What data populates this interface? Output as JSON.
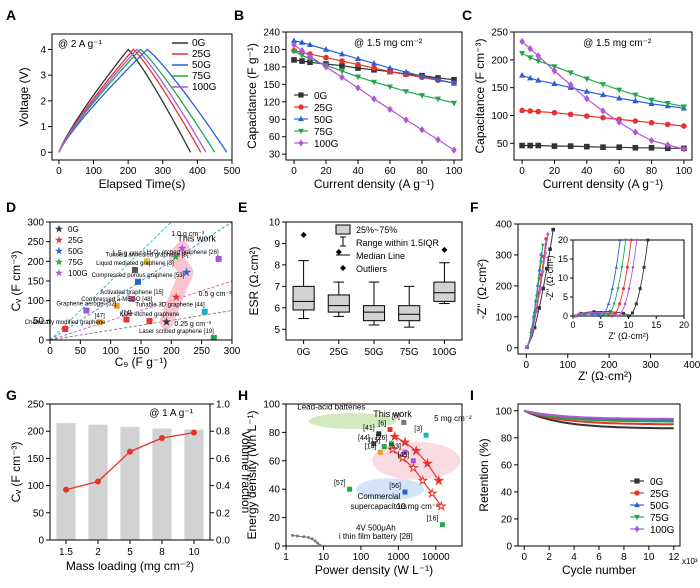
{
  "colors": {
    "0G": "#333333",
    "25G": "#e8322b",
    "50G": "#2a5fd6",
    "75G": "#22a84a",
    "100G": "#b056d6"
  },
  "labels_series": [
    "0G",
    "25G",
    "50G",
    "75G",
    "100G"
  ],
  "chart_data": [
    {
      "panel": "A",
      "type": "line",
      "xlabel": "Elapsed Time(s)",
      "ylabel": "Voltage (V)",
      "xlim": [
        -20,
        500
      ],
      "ylim": [
        -0.3,
        4.6
      ],
      "xticks": [
        0,
        100,
        200,
        300,
        400,
        500
      ],
      "yticks": [
        0,
        1,
        2,
        3,
        4
      ],
      "annotation": "@ 2 A g⁻¹",
      "legend": "top-right",
      "series": [
        {
          "name": "0G",
          "tc": 200,
          "td": 380
        },
        {
          "name": "25G",
          "tc": 215,
          "td": 410
        },
        {
          "name": "50G",
          "tc": 255,
          "td": 485
        },
        {
          "name": "75G",
          "tc": 235,
          "td": 450
        },
        {
          "name": "100G",
          "tc": 225,
          "td": 425
        }
      ]
    },
    {
      "panel": "B",
      "type": "line",
      "xlabel": "Current density (A g⁻¹)",
      "ylabel": "Capacitance (F g⁻¹)",
      "xlim": [
        -5,
        105
      ],
      "ylim": [
        20,
        240
      ],
      "xticks": [
        0,
        20,
        40,
        60,
        80,
        100
      ],
      "yticks": [
        30,
        60,
        90,
        120,
        150,
        180,
        210,
        240
      ],
      "annotation": "@ 1.5 mg cm⁻²",
      "legend": "bottom-left",
      "x": [
        0,
        5,
        10,
        20,
        30,
        40,
        50,
        60,
        70,
        80,
        90,
        100
      ],
      "series": [
        {
          "name": "0G",
          "marker": "square",
          "values": [
            192,
            190,
            188,
            185,
            182,
            178,
            175,
            172,
            168,
            165,
            161,
            158
          ]
        },
        {
          "name": "25G",
          "marker": "circle",
          "values": [
            208,
            205,
            202,
            196,
            190,
            184,
            178,
            172,
            167,
            162,
            157,
            152
          ]
        },
        {
          "name": "50G",
          "marker": "triangle-up",
          "values": [
            225,
            222,
            218,
            210,
            202,
            194,
            186,
            178,
            171,
            164,
            158,
            152
          ]
        },
        {
          "name": "75G",
          "marker": "triangle-down",
          "values": [
            207,
            200,
            194,
            183,
            173,
            163,
            154,
            146,
            138,
            131,
            125,
            118
          ]
        },
        {
          "name": "100G",
          "marker": "diamond",
          "values": [
            218,
            208,
            198,
            180,
            162,
            144,
            125,
            107,
            89,
            72,
            55,
            37
          ]
        }
      ]
    },
    {
      "panel": "C",
      "type": "line",
      "xlabel": "Current density (A g⁻¹)",
      "ylabel": "Capacitance (F cm⁻³)",
      "xlim": [
        -5,
        105
      ],
      "ylim": [
        20,
        250
      ],
      "xticks": [
        0,
        20,
        40,
        60,
        80,
        100
      ],
      "yticks": [
        50,
        100,
        150,
        200,
        250
      ],
      "annotation": "@ 1.5 mg cm⁻²",
      "x": [
        0,
        5,
        10,
        20,
        30,
        40,
        50,
        60,
        70,
        80,
        90,
        100
      ],
      "series": [
        {
          "name": "0G",
          "marker": "square",
          "values": [
            46,
            46,
            46,
            45,
            45,
            44,
            43,
            43,
            42,
            42,
            41,
            41
          ]
        },
        {
          "name": "25G",
          "marker": "circle",
          "values": [
            109,
            108,
            107,
            105,
            102,
            99,
            96,
            93,
            90,
            87,
            84,
            81
          ]
        },
        {
          "name": "50G",
          "marker": "triangle-up",
          "values": [
            172,
            167,
            163,
            157,
            150,
            143,
            137,
            131,
            126,
            121,
            117,
            113
          ]
        },
        {
          "name": "75G",
          "marker": "triangle-down",
          "values": [
            212,
            204,
            198,
            188,
            177,
            166,
            156,
            146,
            137,
            128,
            122,
            116
          ]
        },
        {
          "name": "100G",
          "marker": "diamond",
          "values": [
            233,
            220,
            207,
            180,
            155,
            130,
            108,
            88,
            70,
            55,
            47,
            40
          ]
        }
      ]
    },
    {
      "panel": "D",
      "type": "scatter",
      "xlabel": "C₉ (F g⁻¹)",
      "ylabel": "Cᵥ (F cm⁻³)",
      "xlim": [
        0,
        300
      ],
      "ylim": [
        0,
        300
      ],
      "xticks": [
        0,
        50,
        100,
        150,
        200,
        250,
        300
      ],
      "yticks": [
        0,
        50,
        100,
        150,
        200,
        250,
        300
      ],
      "density_lines": [
        "1.5 g cm⁻³",
        "1.0 g cm⁻³",
        "0.5 g cm⁻³",
        "0.25 g cm⁻³"
      ],
      "this_work_label": "This work",
      "series": [
        {
          "name": "0G",
          "marker": "star",
          "x": 192,
          "y": 46
        },
        {
          "name": "25G",
          "marker": "star",
          "x": 208,
          "y": 109
        },
        {
          "name": "50G",
          "marker": "star",
          "x": 225,
          "y": 172
        },
        {
          "name": "75G",
          "marker": "star",
          "x": 207,
          "y": 212
        },
        {
          "name": "100G",
          "marker": "star",
          "x": 218,
          "y": 233
        }
      ],
      "references": [
        {
          "label": "Tunsei I annealed graphene",
          "ref": "[8]",
          "x": 160,
          "y": 200
        },
        {
          "label": "Liquid mediated graphene [3]",
          "ref": "",
          "x": 140,
          "y": 178
        },
        {
          "label": "Compressed porous graphene",
          "ref": "[53]",
          "x": 145,
          "y": 148
        },
        {
          "label": "H₂O₂ etched graphene",
          "ref": "[26]",
          "x": 278,
          "y": 206
        },
        {
          "label": "Activated graphene",
          "ref": "[15]",
          "x": 135,
          "y": 104
        },
        {
          "label": "Compressed a-MEGO",
          "ref": "[48]",
          "x": 110,
          "y": 87
        },
        {
          "label": "Graphene aerogel",
          "ref": "[52]",
          "x": 60,
          "y": 75
        },
        {
          "label": "",
          "ref": "[47]",
          "x": 82,
          "y": 45
        },
        {
          "label": "",
          "ref": "[14]",
          "x": 126,
          "y": 52
        },
        {
          "label": "KOH etched graphene",
          "ref": "",
          "x": 164,
          "y": 48
        },
        {
          "label": "Tunable 3D graphene",
          "ref": "[44]",
          "x": 255,
          "y": 72
        },
        {
          "label": "Chemically modified graphene",
          "ref": "",
          "x": 25,
          "y": 28
        },
        {
          "label": "Laser scribed graphene",
          "ref": "[19]",
          "x": 270,
          "y": 5
        }
      ]
    },
    {
      "panel": "E",
      "type": "box",
      "ylabel": "ESR (Ω·cm²)",
      "categories": [
        "0G",
        "25G",
        "50G",
        "75G",
        "100G"
      ],
      "ylim": [
        4.5,
        10
      ],
      "yticks": [
        5,
        6,
        7,
        8,
        9,
        10
      ],
      "legend": [
        "25%~75%",
        "Range within 1.5IQR",
        "Median Line",
        "Outliers"
      ],
      "boxes": [
        {
          "min": 5.5,
          "q1": 5.9,
          "median": 6.3,
          "q3": 7.0,
          "max": 8.2,
          "outlier": 9.4
        },
        {
          "min": 5.6,
          "q1": 5.8,
          "median": 6.1,
          "q3": 6.6,
          "max": 7.2,
          "outlier": 8.6
        },
        {
          "min": 5.2,
          "q1": 5.4,
          "median": 5.8,
          "q3": 6.1,
          "max": 7.2,
          "outlier": null
        },
        {
          "min": 5.1,
          "q1": 5.4,
          "median": 5.7,
          "q3": 6.1,
          "max": 7.0,
          "outlier": null
        },
        {
          "min": 6.2,
          "q1": 6.3,
          "median": 6.7,
          "q3": 7.2,
          "max": 8.1,
          "outlier": 8.7
        }
      ]
    },
    {
      "panel": "F",
      "type": "scatter",
      "xlabel": "Z' (Ω·cm²)",
      "ylabel": "-Z'' (Ω·cm²)",
      "xlim": [
        -20,
        400
      ],
      "ylim": [
        -20,
        400
      ],
      "xticks": [
        0,
        100,
        200,
        300,
        400
      ],
      "yticks": [
        0,
        100,
        200,
        300,
        400
      ],
      "inset": {
        "xlabel": "Z' (Ω·cm²)",
        "ylabel": "-Z'' (Ω·cm²)",
        "xlim": [
          0,
          20
        ],
        "ylim": [
          0,
          20
        ],
        "xticks": [
          0,
          5,
          10,
          15,
          20
        ],
        "yticks": [
          0,
          5,
          10,
          15,
          20
        ]
      },
      "series": [
        {
          "name": "0G",
          "rs": 0.5,
          "rct": 9.5,
          "slope": 7
        },
        {
          "name": "25G",
          "rs": 0.5,
          "rct": 6.5,
          "slope": 9
        },
        {
          "name": "50G",
          "rs": 0.5,
          "rct": 4.5,
          "slope": 10
        },
        {
          "name": "75G",
          "rs": 0.5,
          "rct": 5.5,
          "slope": 10
        },
        {
          "name": "100G",
          "rs": 0.5,
          "rct": 7.5,
          "slope": 9
        }
      ]
    },
    {
      "panel": "G",
      "type": "bar+line",
      "xlabel": "Mass loading (mg cm⁻²)",
      "ylabel": "Cᵥ (F cm⁻³)",
      "y2label": "Volume fraction",
      "categories": [
        "1.5",
        "2",
        "5",
        "8",
        "10"
      ],
      "ylim": [
        0,
        250
      ],
      "yticks": [
        0,
        50,
        100,
        150,
        200,
        250
      ],
      "y2lim": [
        0,
        1.0
      ],
      "y2ticks": [
        0.0,
        0.2,
        0.4,
        0.6,
        0.8,
        1.0
      ],
      "annotation": "@ 1 A g⁻¹",
      "bars": [
        215,
        212,
        208,
        205,
        203
      ],
      "line": [
        0.37,
        0.43,
        0.65,
        0.75,
        0.79
      ]
    },
    {
      "panel": "H",
      "type": "ragone",
      "xlabel": "Power density (W L⁻¹)",
      "ylabel": "Energy density (Wh L⁻¹)",
      "xlog": true,
      "xlim": [
        1,
        50000
      ],
      "ylim": [
        0,
        100
      ],
      "xtick_labels": [
        "1",
        "10",
        "100",
        "1000",
        "10000"
      ],
      "yticks": [
        0,
        20,
        40,
        60,
        80,
        100
      ],
      "lead_acid_label": "Lead-acid batteries",
      "supercap_label": "Commercial supercapacitors",
      "thin_film_label": "4V 500μAh Li thin film battery [28]",
      "this_work_label": "This work",
      "loading_labels": [
        "5 mg cm⁻²",
        "10 mg cm⁻²"
      ],
      "this_work_5": {
        "x": [
          800,
          1500,
          3000,
          6000,
          12000
        ],
        "y": [
          77,
          73,
          67,
          58,
          46
        ]
      },
      "this_work_10": {
        "x": [
          700,
          1300,
          2500,
          4500,
          8000,
          14000
        ],
        "y": [
          68,
          62,
          55,
          46,
          37,
          28
        ]
      },
      "thin_film": {
        "x": [
          1.5,
          2,
          3,
          4,
          5,
          6,
          7,
          8
        ],
        "y": [
          7.5,
          7,
          6.5,
          6,
          5,
          3.5,
          2,
          0.5
        ]
      },
      "refs": [
        {
          "ref": "[6]",
          "x": 600,
          "y": 82
        },
        {
          "ref": "[8]",
          "x": 1400,
          "y": 87
        },
        {
          "ref": "[41]",
          "x": 300,
          "y": 79
        },
        {
          "ref": "[44]",
          "x": 220,
          "y": 72
        },
        {
          "ref": "[14]",
          "x": 330,
          "y": 66
        },
        {
          "ref": "[15]",
          "x": 420,
          "y": 70
        },
        {
          "ref": "[26]",
          "x": 650,
          "y": 72
        },
        {
          "ref": "[53]",
          "x": 1500,
          "y": 66
        },
        {
          "ref": "[45]",
          "x": 2500,
          "y": 60
        },
        {
          "ref": "[3]",
          "x": 5500,
          "y": 78
        },
        {
          "ref": "[56]",
          "x": 1500,
          "y": 38
        },
        {
          "ref": "[57]",
          "x": 50,
          "y": 40
        },
        {
          "ref": "[16]",
          "x": 15000,
          "y": 15
        }
      ]
    },
    {
      "panel": "I",
      "type": "line",
      "xlabel": "Cycle number",
      "ylabel": "Retention (%)",
      "xlim": [
        -0.5,
        12.5
      ],
      "ylim": [
        0,
        105
      ],
      "xticks": [
        0,
        2,
        4,
        6,
        8,
        10,
        12
      ],
      "yticks": [
        0,
        20,
        40,
        60,
        80,
        100
      ],
      "xscale_label": "x10³",
      "legend": "bottom-right",
      "series": [
        {
          "name": "0G",
          "end": 87
        },
        {
          "name": "25G",
          "end": 90
        },
        {
          "name": "50G",
          "end": 93
        },
        {
          "name": "75G",
          "end": 92
        },
        {
          "name": "100G",
          "end": 94
        }
      ]
    }
  ]
}
